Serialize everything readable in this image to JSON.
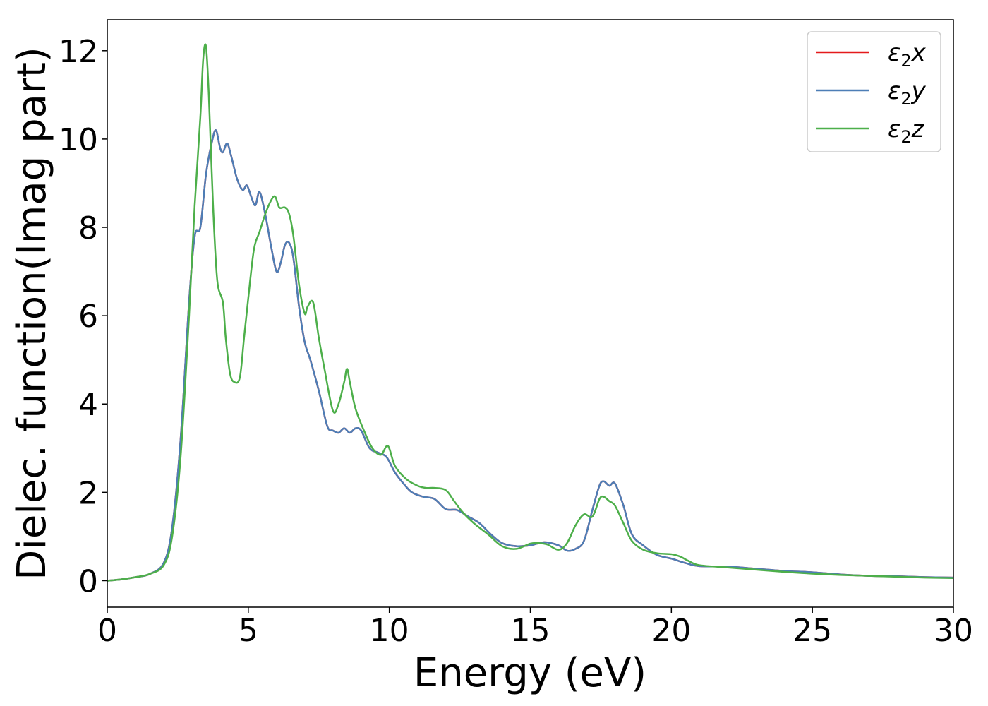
{
  "chart_data": {
    "type": "line",
    "xlabel": "Energy (eV)",
    "ylabel": "Dielec. function(Imag part)",
    "xlim": [
      0,
      30
    ],
    "ylim": [
      -0.6,
      12.7
    ],
    "xticks": [
      0,
      5,
      10,
      15,
      20,
      25,
      30
    ],
    "yticks": [
      0,
      2,
      4,
      6,
      8,
      10,
      12
    ],
    "grid": false,
    "legend_position": "top-right",
    "series": [
      {
        "name": "ε₂x",
        "legend": {
          "base": "ε",
          "sub": "2",
          "suffix": "x"
        },
        "color": "#e41a1c",
        "x": [
          0,
          0.5,
          1.0,
          1.5,
          2.0,
          2.3,
          2.6,
          2.9,
          3.1,
          3.3,
          3.5,
          3.7,
          3.85,
          4.0,
          4.1,
          4.25,
          4.4,
          4.6,
          4.8,
          4.95,
          5.1,
          5.25,
          5.4,
          5.6,
          5.8,
          6.0,
          6.15,
          6.3,
          6.45,
          6.6,
          6.8,
          7.0,
          7.2,
          7.5,
          7.8,
          8.0,
          8.2,
          8.4,
          8.6,
          8.8,
          9.0,
          9.3,
          9.6,
          9.9,
          10.2,
          10.5,
          10.8,
          11.2,
          11.6,
          12.0,
          12.4,
          12.8,
          13.2,
          13.6,
          14.0,
          14.5,
          15.0,
          15.5,
          16.0,
          16.3,
          16.6,
          16.9,
          17.2,
          17.45,
          17.6,
          17.8,
          18.0,
          18.3,
          18.6,
          19.0,
          19.5,
          20.0,
          20.5,
          21.0,
          22.0,
          23.0,
          24.0,
          25.0,
          26.0,
          27.0,
          28.0,
          29.0,
          30.0
        ],
        "values": [
          0.0,
          0.03,
          0.08,
          0.15,
          0.4,
          1.2,
          3.2,
          6.3,
          7.8,
          8.0,
          9.2,
          9.9,
          10.2,
          9.8,
          9.7,
          9.9,
          9.6,
          9.1,
          8.85,
          8.95,
          8.7,
          8.5,
          8.8,
          8.3,
          7.6,
          7.0,
          7.2,
          7.6,
          7.65,
          7.3,
          6.2,
          5.4,
          5.0,
          4.3,
          3.5,
          3.4,
          3.35,
          3.45,
          3.35,
          3.45,
          3.4,
          3.0,
          2.9,
          2.8,
          2.45,
          2.2,
          2.0,
          1.9,
          1.85,
          1.62,
          1.6,
          1.45,
          1.3,
          1.05,
          0.85,
          0.78,
          0.8,
          0.87,
          0.8,
          0.68,
          0.72,
          0.9,
          1.6,
          2.15,
          2.25,
          2.15,
          2.2,
          1.7,
          1.05,
          0.8,
          0.58,
          0.5,
          0.4,
          0.33,
          0.32,
          0.27,
          0.22,
          0.19,
          0.14,
          0.11,
          0.1,
          0.08,
          0.07
        ]
      },
      {
        "name": "ε₂y",
        "legend": {
          "base": "ε",
          "sub": "2",
          "suffix": "y"
        },
        "color": "#4d7eb6",
        "x": [
          0,
          0.5,
          1.0,
          1.5,
          2.0,
          2.3,
          2.6,
          2.9,
          3.1,
          3.3,
          3.5,
          3.7,
          3.85,
          4.0,
          4.1,
          4.25,
          4.4,
          4.6,
          4.8,
          4.95,
          5.1,
          5.25,
          5.4,
          5.6,
          5.8,
          6.0,
          6.15,
          6.3,
          6.45,
          6.6,
          6.8,
          7.0,
          7.2,
          7.5,
          7.8,
          8.0,
          8.2,
          8.4,
          8.6,
          8.8,
          9.0,
          9.3,
          9.6,
          9.9,
          10.2,
          10.5,
          10.8,
          11.2,
          11.6,
          12.0,
          12.4,
          12.8,
          13.2,
          13.6,
          14.0,
          14.5,
          15.0,
          15.5,
          16.0,
          16.3,
          16.6,
          16.9,
          17.2,
          17.45,
          17.6,
          17.8,
          18.0,
          18.3,
          18.6,
          19.0,
          19.5,
          20.0,
          20.5,
          21.0,
          22.0,
          23.0,
          24.0,
          25.0,
          26.0,
          27.0,
          28.0,
          29.0,
          30.0
        ],
        "values": [
          0.0,
          0.03,
          0.08,
          0.15,
          0.4,
          1.2,
          3.2,
          6.3,
          7.8,
          8.0,
          9.2,
          9.9,
          10.2,
          9.8,
          9.7,
          9.9,
          9.6,
          9.1,
          8.85,
          8.95,
          8.7,
          8.5,
          8.8,
          8.3,
          7.6,
          7.0,
          7.2,
          7.6,
          7.65,
          7.3,
          6.2,
          5.4,
          5.0,
          4.3,
          3.5,
          3.4,
          3.35,
          3.45,
          3.35,
          3.45,
          3.4,
          3.0,
          2.9,
          2.8,
          2.45,
          2.2,
          2.0,
          1.9,
          1.85,
          1.62,
          1.6,
          1.45,
          1.3,
          1.05,
          0.85,
          0.78,
          0.8,
          0.87,
          0.8,
          0.68,
          0.72,
          0.9,
          1.6,
          2.15,
          2.25,
          2.15,
          2.2,
          1.7,
          1.05,
          0.8,
          0.58,
          0.5,
          0.4,
          0.33,
          0.32,
          0.27,
          0.22,
          0.19,
          0.14,
          0.11,
          0.1,
          0.08,
          0.07
        ]
      },
      {
        "name": "ε₂z",
        "legend": {
          "base": "ε",
          "sub": "2",
          "suffix": "z"
        },
        "color": "#4daf4a",
        "x": [
          0,
          0.5,
          1.0,
          1.5,
          2.0,
          2.3,
          2.6,
          2.9,
          3.1,
          3.3,
          3.4,
          3.5,
          3.6,
          3.75,
          3.9,
          4.1,
          4.2,
          4.35,
          4.5,
          4.7,
          4.85,
          5.0,
          5.2,
          5.4,
          5.6,
          5.8,
          5.95,
          6.1,
          6.3,
          6.45,
          6.6,
          6.8,
          7.0,
          7.1,
          7.3,
          7.5,
          7.7,
          8.0,
          8.2,
          8.4,
          8.5,
          8.6,
          8.8,
          9.1,
          9.4,
          9.7,
          9.95,
          10.2,
          10.6,
          11.0,
          11.3,
          11.6,
          12.0,
          12.3,
          12.6,
          13.0,
          13.5,
          14.0,
          14.5,
          15.0,
          15.3,
          15.6,
          16.0,
          16.3,
          16.6,
          16.9,
          17.2,
          17.45,
          17.6,
          17.8,
          18.0,
          18.3,
          18.6,
          19.0,
          19.5,
          20.0,
          20.3,
          20.6,
          21.0,
          22.0,
          23.0,
          24.0,
          25.0,
          26.0,
          27.0,
          28.0,
          29.0,
          30.0
        ],
        "values": [
          0.0,
          0.03,
          0.08,
          0.15,
          0.35,
          1.0,
          2.8,
          6.0,
          8.5,
          10.5,
          11.8,
          12.1,
          11.0,
          8.5,
          6.8,
          6.3,
          5.5,
          4.7,
          4.5,
          4.6,
          5.5,
          6.4,
          7.5,
          7.9,
          8.3,
          8.6,
          8.7,
          8.45,
          8.45,
          8.3,
          7.8,
          6.7,
          6.05,
          6.2,
          6.3,
          5.5,
          4.8,
          3.85,
          4.0,
          4.5,
          4.8,
          4.5,
          3.9,
          3.4,
          3.0,
          2.85,
          3.05,
          2.6,
          2.3,
          2.15,
          2.1,
          2.1,
          2.05,
          1.8,
          1.55,
          1.3,
          1.05,
          0.78,
          0.72,
          0.84,
          0.85,
          0.82,
          0.7,
          0.85,
          1.25,
          1.5,
          1.45,
          1.85,
          1.9,
          1.8,
          1.7,
          1.3,
          0.9,
          0.7,
          0.62,
          0.6,
          0.55,
          0.45,
          0.35,
          0.3,
          0.25,
          0.2,
          0.16,
          0.13,
          0.11,
          0.09,
          0.07,
          0.06
        ]
      }
    ]
  }
}
